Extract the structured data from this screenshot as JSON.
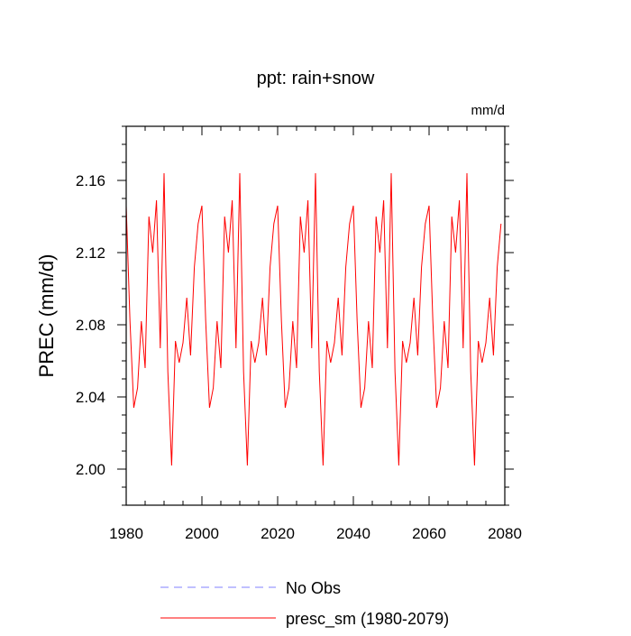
{
  "chart_data": {
    "type": "line",
    "title": "ppt: rain+snow",
    "units": "mm/d",
    "ylabel": "PREC  (mm/d)",
    "xlabel": "",
    "xlim": [
      1980,
      2080
    ],
    "ylim": [
      1.98,
      2.19
    ],
    "x_ticks": [
      1980,
      2000,
      2020,
      2040,
      2060,
      2080
    ],
    "x_tick_labels": [
      "1980",
      "2000",
      "2020",
      "2040",
      "2060",
      "2080"
    ],
    "y_ticks": [
      2.0,
      2.04,
      2.08,
      2.12,
      2.16
    ],
    "y_tick_labels": [
      "2.00",
      "2.04",
      "2.08",
      "2.12",
      "2.16"
    ],
    "grid": false,
    "legend_position": "bottom",
    "series": [
      {
        "name": "presc_sm (1980-2079)",
        "color": "#ff0000",
        "style": "solid",
        "x_start": 1980,
        "x_step": 1,
        "values": [
          2.146,
          2.082,
          2.034,
          2.045,
          2.082,
          2.056,
          2.14,
          2.12,
          2.149,
          2.067,
          2.164,
          2.054,
          2.002,
          2.071,
          2.059,
          2.07,
          2.095,
          2.063,
          2.112,
          2.136,
          2.146,
          2.082,
          2.034,
          2.045,
          2.082,
          2.056,
          2.14,
          2.12,
          2.149,
          2.067,
          2.164,
          2.054,
          2.002,
          2.071,
          2.059,
          2.07,
          2.095,
          2.063,
          2.112,
          2.136,
          2.146,
          2.082,
          2.034,
          2.045,
          2.082,
          2.056,
          2.14,
          2.12,
          2.149,
          2.067,
          2.164,
          2.054,
          2.002,
          2.071,
          2.059,
          2.07,
          2.095,
          2.063,
          2.112,
          2.136,
          2.146,
          2.082,
          2.034,
          2.045,
          2.082,
          2.056,
          2.14,
          2.12,
          2.149,
          2.067,
          2.164,
          2.054,
          2.002,
          2.071,
          2.059,
          2.07,
          2.095,
          2.063,
          2.112,
          2.136,
          2.146,
          2.082,
          2.034,
          2.045,
          2.082,
          2.056,
          2.14,
          2.12,
          2.149,
          2.067,
          2.164,
          2.054,
          2.002,
          2.071,
          2.059,
          2.07,
          2.095,
          2.063,
          2.112,
          2.136
        ]
      }
    ],
    "legend": [
      {
        "label": "No Obs",
        "color": "#8080ff",
        "style": "dashed"
      },
      {
        "label": "presc_sm (1980-2079)",
        "color": "#ff0000",
        "style": "solid"
      }
    ]
  }
}
